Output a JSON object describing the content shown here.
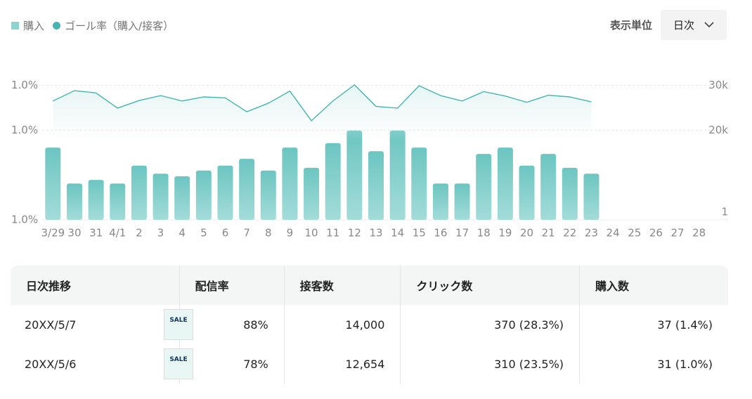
{
  "legend_note": null,
  "controls": {
    "unit_label": "表示単位",
    "unit_value": "日次"
  },
  "chart_data": {
    "type": "bar",
    "categories": [
      "3/29",
      "30",
      "31",
      "4/1",
      "2",
      "3",
      "4",
      "5",
      "6",
      "7",
      "8",
      "9",
      "10",
      "11",
      "12",
      "13",
      "14",
      "15",
      "16",
      "17",
      "18",
      "19",
      "20",
      "21",
      "22",
      "23",
      "24",
      "25",
      "26",
      "27",
      "28"
    ],
    "series": [
      {
        "name": "購入",
        "color": "#6fc6c2",
        "axis": "y2",
        "values": [
          16100,
          8100,
          8900,
          8100,
          12100,
          10300,
          9700,
          11000,
          12100,
          13600,
          11000,
          16100,
          11600,
          17100,
          19900,
          15300,
          19900,
          16100,
          8100,
          8100,
          14700,
          16100,
          12100,
          14700,
          11600,
          10300,
          null,
          null,
          null,
          null,
          null
        ]
      },
      {
        "name": "ゴール率（購入/接客）",
        "color": "#45b5b1",
        "type": "line",
        "values": [
          0.9865,
          0.9888,
          0.9883,
          0.9849,
          0.9866,
          0.9877,
          0.9865,
          0.9874,
          0.9872,
          0.9841,
          0.986,
          0.9887,
          0.9821,
          0.9865,
          0.9901,
          0.9853,
          0.9849,
          0.9899,
          0.9877,
          0.9865,
          0.9886,
          0.9876,
          0.9862,
          0.9878,
          0.9874,
          0.9863,
          null,
          null,
          null,
          null,
          null
        ]
      }
    ],
    "ylim": [
      0.96,
      0.991
    ],
    "yticks": [
      {
        "value": 0.96,
        "label": "1.0%"
      },
      {
        "value": 0.98,
        "label": "1.0%"
      },
      {
        "value": 0.99,
        "label": "1.0%"
      }
    ],
    "y2lim": [
      0,
      31000
    ],
    "y2ticks": [
      1,
      {
        "value": 20000,
        "label": "20k"
      },
      {
        "value": 30000,
        "label": "30k"
      }
    ],
    "grid": true
  },
  "table": {
    "header": [
      "日次推移",
      "配信率",
      "接客数",
      "クリック数",
      "購入数"
    ],
    "rows": [
      {
        "date": "20XX/5/7",
        "thumbnail": "SALE",
        "cells": [
          "88%",
          "14,000",
          "370 (28.3%)",
          "37 (1.4%)"
        ]
      },
      {
        "date": "20XX/5/6",
        "thumbnail": "SALE",
        "cells": [
          "78%",
          "12,654",
          "310 (23.5%)",
          "31 (1.0%)"
        ]
      }
    ]
  }
}
